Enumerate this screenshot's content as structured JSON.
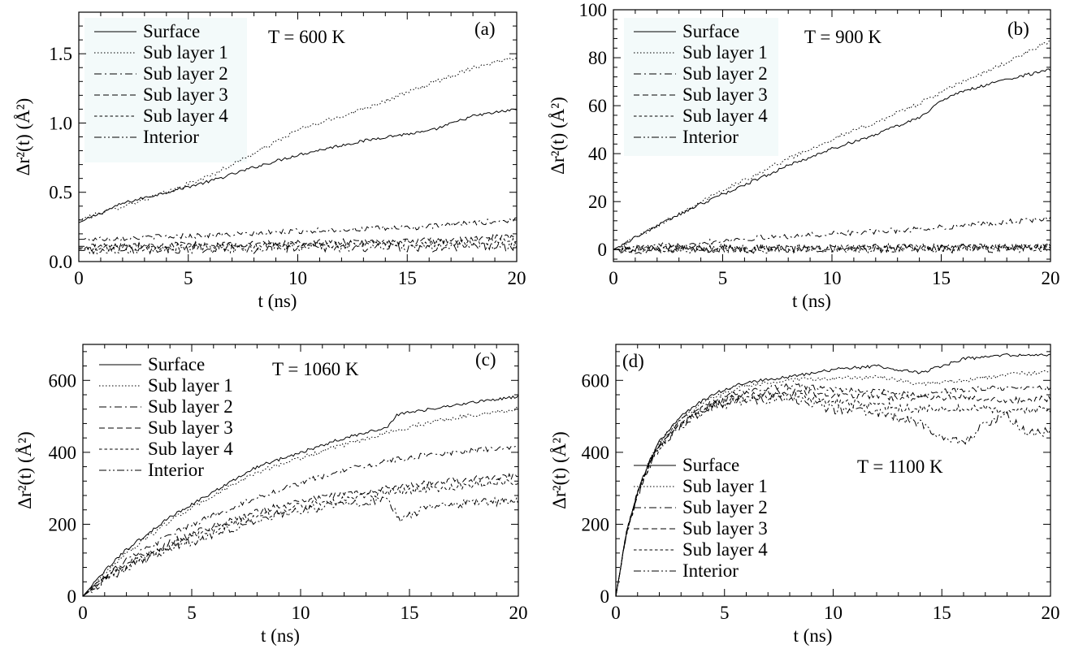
{
  "chart_data": [
    {
      "type": "line",
      "panel_label": "(a)",
      "temperature_label": "T = 600 K",
      "xlabel": "t (ns)",
      "ylabel": "Δr²(t)  (Å²)",
      "xlim": [
        0,
        20
      ],
      "ylim": [
        0,
        1.8
      ],
      "xticks": [
        0,
        5,
        10,
        15,
        20
      ],
      "xtick_labels": [
        "0",
        "5",
        "10",
        "15",
        "20"
      ],
      "yticks": [
        0.0,
        0.5,
        1.0,
        1.5
      ],
      "ytick_labels": [
        "0.0",
        "0.5",
        "1.0",
        "1.5"
      ],
      "legend_position": "top-left",
      "legend_background": "#f3fafa",
      "series": [
        {
          "name": "Surface",
          "dash": "solid",
          "x": [
            0,
            2,
            4,
            6,
            8,
            10,
            12,
            14,
            16,
            18,
            20
          ],
          "y": [
            0.28,
            0.42,
            0.5,
            0.58,
            0.68,
            0.77,
            0.84,
            0.9,
            0.94,
            1.05,
            1.1
          ]
        },
        {
          "name": "Sub layer 1",
          "dash": "dotted",
          "x": [
            0,
            2,
            4,
            6,
            8,
            10,
            12,
            14,
            16,
            18,
            20
          ],
          "y": [
            0.3,
            0.4,
            0.5,
            0.62,
            0.78,
            0.95,
            1.05,
            1.16,
            1.28,
            1.4,
            1.48
          ]
        },
        {
          "name": "Sub layer 2",
          "dash": "dashdot",
          "x": [
            0,
            2,
            4,
            6,
            8,
            10,
            12,
            14,
            16,
            18,
            20
          ],
          "y": [
            0.16,
            0.17,
            0.18,
            0.19,
            0.2,
            0.22,
            0.23,
            0.24,
            0.25,
            0.28,
            0.3
          ]
        },
        {
          "name": "Sub layer 3",
          "dash": "dashed",
          "x": [
            0,
            2,
            4,
            6,
            8,
            10,
            12,
            14,
            16,
            18,
            20
          ],
          "y": [
            0.11,
            0.11,
            0.12,
            0.12,
            0.13,
            0.13,
            0.14,
            0.14,
            0.15,
            0.16,
            0.18
          ]
        },
        {
          "name": "Sub layer 4",
          "dash": "shortdash",
          "x": [
            0,
            2,
            4,
            6,
            8,
            10,
            12,
            14,
            16,
            18,
            20
          ],
          "y": [
            0.09,
            0.1,
            0.1,
            0.11,
            0.11,
            0.12,
            0.12,
            0.13,
            0.13,
            0.14,
            0.15
          ]
        },
        {
          "name": "Interior",
          "dash": "dashdotdot",
          "x": [
            0,
            2,
            4,
            6,
            8,
            10,
            12,
            14,
            16,
            18,
            20
          ],
          "y": [
            0.08,
            0.08,
            0.09,
            0.09,
            0.09,
            0.1,
            0.1,
            0.1,
            0.1,
            0.11,
            0.11
          ]
        }
      ]
    },
    {
      "type": "line",
      "panel_label": "(b)",
      "temperature_label": "T = 900 K",
      "xlabel": "t (ns)",
      "ylabel": "Δr²(t)  (Å²)",
      "xlim": [
        0,
        20
      ],
      "ylim": [
        -5,
        100
      ],
      "xticks": [
        0,
        5,
        10,
        15,
        20
      ],
      "xtick_labels": [
        "0",
        "5",
        "10",
        "15",
        "20"
      ],
      "yticks": [
        0,
        20,
        40,
        60,
        80,
        100
      ],
      "ytick_labels": [
        "0",
        "20",
        "40",
        "60",
        "80",
        "100"
      ],
      "legend_position": "top-left",
      "legend_background": "#f3fafa",
      "series": [
        {
          "name": "Surface",
          "dash": "solid",
          "x": [
            0,
            2,
            4,
            6,
            8,
            10,
            12,
            14,
            15,
            16,
            18,
            20
          ],
          "y": [
            0,
            10,
            19,
            27,
            35,
            42,
            48,
            55,
            62,
            66,
            71,
            75
          ]
        },
        {
          "name": "Sub layer 1",
          "dash": "dotted",
          "x": [
            0,
            2,
            4,
            6,
            8,
            10,
            12,
            14,
            16,
            18,
            20
          ],
          "y": [
            0,
            10,
            20,
            29,
            38,
            46,
            53,
            61,
            70,
            78,
            87
          ]
        },
        {
          "name": "Sub layer 2",
          "dash": "dashdot",
          "x": [
            0,
            2,
            4,
            6,
            8,
            10,
            12,
            14,
            16,
            18,
            20
          ],
          "y": [
            0,
            1.5,
            3,
            4.5,
            5.5,
            6.5,
            7.5,
            8.5,
            10,
            11.5,
            13
          ]
        },
        {
          "name": "Sub layer 3",
          "dash": "dashed",
          "x": [
            0,
            5,
            10,
            15,
            20
          ],
          "y": [
            0,
            0.4,
            0.7,
            0.9,
            1.1
          ]
        },
        {
          "name": "Sub layer 4",
          "dash": "shortdash",
          "x": [
            0,
            5,
            10,
            15,
            20
          ],
          "y": [
            0,
            0.3,
            0.5,
            0.7,
            0.8
          ]
        },
        {
          "name": "Interior",
          "dash": "dashdotdot",
          "x": [
            0,
            5,
            10,
            15,
            20
          ],
          "y": [
            0,
            0.2,
            0.4,
            0.5,
            0.6
          ]
        }
      ]
    },
    {
      "type": "line",
      "panel_label": "(c)",
      "temperature_label": "T = 1060 K",
      "xlabel": "t (ns)",
      "ylabel": "Δr²(t)  (Å²)",
      "xlim": [
        0,
        20
      ],
      "ylim": [
        0,
        700
      ],
      "xticks": [
        0,
        5,
        10,
        15,
        20
      ],
      "xtick_labels": [
        "0",
        "5",
        "10",
        "15",
        "20"
      ],
      "yticks": [
        0,
        200,
        400,
        600
      ],
      "ytick_labels": [
        "0",
        "200",
        "400",
        "600"
      ],
      "legend_position": "top-left",
      "legend_background": "#ffffff",
      "series": [
        {
          "name": "Surface",
          "dash": "solid",
          "x": [
            0,
            1,
            2,
            4,
            6,
            8,
            10,
            12,
            14,
            14.4,
            16,
            18,
            20
          ],
          "y": [
            0,
            70,
            130,
            220,
            290,
            360,
            400,
            440,
            470,
            505,
            520,
            540,
            555
          ]
        },
        {
          "name": "Sub layer 1",
          "dash": "dotted",
          "x": [
            0,
            1,
            2,
            4,
            6,
            8,
            10,
            12,
            14,
            16,
            18,
            20
          ],
          "y": [
            0,
            65,
            120,
            210,
            280,
            345,
            385,
            420,
            455,
            485,
            505,
            520
          ]
        },
        {
          "name": "Sub layer 2",
          "dash": "dashdot",
          "x": [
            0,
            1,
            2,
            4,
            6,
            8,
            10,
            12,
            14,
            16,
            18,
            20
          ],
          "y": [
            0,
            55,
            100,
            170,
            225,
            275,
            315,
            350,
            375,
            395,
            405,
            415
          ]
        },
        {
          "name": "Sub layer 3",
          "dash": "dashed",
          "x": [
            0,
            1,
            2,
            4,
            6,
            8,
            10,
            12,
            14,
            16,
            18,
            20
          ],
          "y": [
            0,
            50,
            90,
            150,
            195,
            235,
            265,
            285,
            300,
            315,
            325,
            335
          ]
        },
        {
          "name": "Sub layer 4",
          "dash": "shortdash",
          "x": [
            0,
            1,
            2,
            4,
            6,
            8,
            10,
            12,
            14,
            16,
            18,
            20
          ],
          "y": [
            0,
            48,
            85,
            140,
            185,
            220,
            250,
            270,
            290,
            300,
            310,
            320
          ]
        },
        {
          "name": "Interior",
          "dash": "dashdotdot",
          "x": [
            0,
            1,
            2,
            4,
            6,
            8,
            10,
            12,
            14,
            14.6,
            16,
            18,
            20
          ],
          "y": [
            0,
            45,
            80,
            130,
            170,
            215,
            240,
            255,
            265,
            215,
            250,
            260,
            265
          ]
        }
      ]
    },
    {
      "type": "line",
      "panel_label": "(d)",
      "temperature_label": "T = 1100 K",
      "xlabel": "t (ns)",
      "ylabel": "Δr²(t)  (Å²)",
      "xlim": [
        0,
        20
      ],
      "ylim": [
        0,
        700
      ],
      "xticks": [
        0,
        5,
        10,
        15,
        20
      ],
      "xtick_labels": [
        "0",
        "5",
        "10",
        "15",
        "20"
      ],
      "yticks": [
        0,
        200,
        400,
        600
      ],
      "ytick_labels": [
        "0",
        "200",
        "400",
        "600"
      ],
      "legend_position": "bottom-left",
      "legend_background": "#ffffff",
      "series": [
        {
          "name": "Surface",
          "dash": "solid",
          "x": [
            0,
            0.5,
            1,
            1.5,
            2,
            3,
            4,
            5,
            6,
            8,
            10,
            12,
            14,
            16,
            18,
            20
          ],
          "y": [
            0,
            180,
            290,
            370,
            430,
            500,
            545,
            575,
            595,
            610,
            630,
            640,
            620,
            660,
            670,
            670
          ]
        },
        {
          "name": "Sub layer 1",
          "dash": "dotted",
          "x": [
            0,
            0.5,
            1,
            1.5,
            2,
            3,
            4,
            5,
            6,
            8,
            10,
            12,
            14,
            16,
            18,
            20
          ],
          "y": [
            0,
            180,
            290,
            370,
            428,
            495,
            538,
            565,
            585,
            600,
            605,
            610,
            590,
            600,
            615,
            625
          ]
        },
        {
          "name": "Sub layer 2",
          "dash": "dashdot",
          "x": [
            0,
            0.5,
            1,
            1.5,
            2,
            3,
            4,
            5,
            6,
            8,
            10,
            12,
            14,
            16,
            18,
            20
          ],
          "y": [
            0,
            178,
            288,
            365,
            422,
            488,
            530,
            555,
            570,
            585,
            575,
            570,
            560,
            575,
            580,
            580
          ]
        },
        {
          "name": "Sub layer 3",
          "dash": "dashed",
          "x": [
            0,
            0.5,
            1,
            1.5,
            2,
            3,
            4,
            5,
            6,
            8,
            10,
            12,
            14,
            16,
            18,
            20
          ],
          "y": [
            0,
            178,
            286,
            362,
            418,
            482,
            522,
            545,
            560,
            570,
            560,
            555,
            550,
            555,
            545,
            550
          ]
        },
        {
          "name": "Sub layer 4",
          "dash": "shortdash",
          "x": [
            0,
            0.5,
            1,
            1.5,
            2,
            3,
            4,
            5,
            6,
            8,
            10,
            12,
            14,
            16,
            18,
            20
          ],
          "y": [
            0,
            176,
            284,
            360,
            415,
            478,
            518,
            540,
            552,
            560,
            540,
            530,
            520,
            525,
            515,
            520
          ]
        },
        {
          "name": "Interior",
          "dash": "dashdotdot",
          "x": [
            0,
            0.5,
            1,
            1.5,
            2,
            3,
            4,
            5,
            6,
            8,
            10,
            12,
            14,
            15,
            16,
            17,
            18,
            19,
            20
          ],
          "y": [
            0,
            175,
            282,
            358,
            412,
            475,
            512,
            532,
            545,
            550,
            520,
            510,
            480,
            440,
            425,
            480,
            500,
            450,
            460
          ]
        }
      ]
    }
  ]
}
